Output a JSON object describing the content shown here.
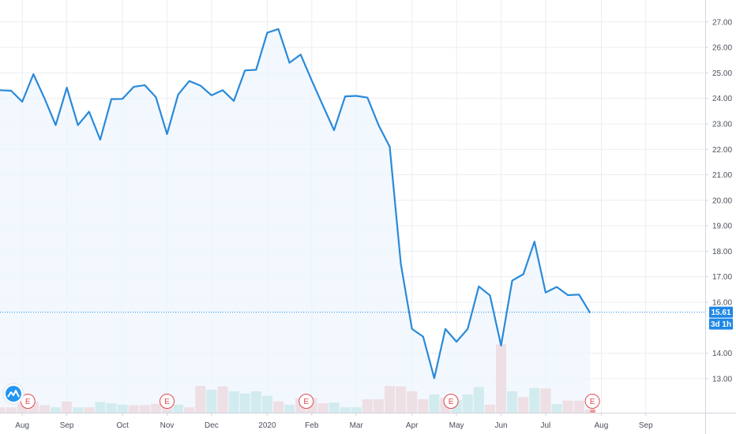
{
  "chart_data": {
    "type": "line",
    "ylim": [
      12.3,
      27.35
    ],
    "y_ticks": [
      "27.00",
      "26.00",
      "25.00",
      "24.00",
      "23.00",
      "22.00",
      "21.00",
      "20.00",
      "19.00",
      "18.00",
      "17.00",
      "16.00",
      "14.00",
      "13.00"
    ],
    "x_labels": [
      {
        "label": "Aug",
        "pos": 2.0
      },
      {
        "label": "Sep",
        "pos": 6.0
      },
      {
        "label": "Oct",
        "pos": 11.0
      },
      {
        "label": "Nov",
        "pos": 15.0
      },
      {
        "label": "Dec",
        "pos": 19.0
      },
      {
        "label": "2020",
        "pos": 24.0
      },
      {
        "label": "Feb",
        "pos": 28.0
      },
      {
        "label": "Mar",
        "pos": 32.0
      },
      {
        "label": "Apr",
        "pos": 37.0
      },
      {
        "label": "May",
        "pos": 41.0
      },
      {
        "label": "Jun",
        "pos": 45.0
      },
      {
        "label": "Jul",
        "pos": 49.0
      },
      {
        "label": "Aug",
        "pos": 54.0
      },
      {
        "label": "Sep",
        "pos": 58.0
      }
    ],
    "series": [
      {
        "values": [
          24.32,
          24.3,
          23.87,
          24.95,
          24.0,
          22.95,
          24.42,
          22.95,
          23.48,
          22.38,
          23.97,
          23.98,
          24.45,
          24.52,
          24.05,
          22.6,
          24.15,
          24.68,
          24.5,
          24.12,
          24.32,
          23.9,
          25.1,
          25.12,
          26.58,
          26.72,
          25.4,
          25.72,
          24.7,
          23.72,
          22.75,
          24.08,
          24.1,
          24.03,
          22.95,
          22.1,
          17.5,
          14.95,
          14.65,
          13.02,
          14.95,
          14.45,
          14.95,
          16.62,
          16.27,
          14.3,
          16.85,
          17.1,
          18.38,
          16.38,
          16.6,
          16.28,
          16.3,
          15.58
        ]
      }
    ],
    "last_price": "15.61",
    "countdown": "3d 1h",
    "volume": [
      {
        "v": 0.2,
        "c": "red"
      },
      {
        "v": 0.2,
        "c": "red"
      },
      {
        "v": 0.33,
        "c": "red"
      },
      {
        "v": 0.4,
        "c": "red"
      },
      {
        "v": 0.28,
        "c": "red"
      },
      {
        "v": 0.2,
        "c": "green"
      },
      {
        "v": 0.42,
        "c": "red"
      },
      {
        "v": 0.2,
        "c": "green"
      },
      {
        "v": 0.2,
        "c": "red"
      },
      {
        "v": 0.4,
        "c": "green"
      },
      {
        "v": 0.35,
        "c": "green"
      },
      {
        "v": 0.3,
        "c": "green"
      },
      {
        "v": 0.28,
        "c": "red"
      },
      {
        "v": 0.28,
        "c": "red"
      },
      {
        "v": 0.33,
        "c": "red"
      },
      {
        "v": 0.42,
        "c": "red"
      },
      {
        "v": 0.3,
        "c": "green"
      },
      {
        "v": 0.2,
        "c": "red"
      },
      {
        "v": 1.0,
        "c": "red"
      },
      {
        "v": 0.86,
        "c": "green"
      },
      {
        "v": 0.98,
        "c": "red"
      },
      {
        "v": 0.8,
        "c": "green"
      },
      {
        "v": 0.72,
        "c": "green"
      },
      {
        "v": 0.8,
        "c": "green"
      },
      {
        "v": 0.63,
        "c": "green"
      },
      {
        "v": 0.42,
        "c": "red"
      },
      {
        "v": 0.3,
        "c": "green"
      },
      {
        "v": 0.55,
        "c": "red"
      },
      {
        "v": 0.55,
        "c": "red"
      },
      {
        "v": 0.35,
        "c": "red"
      },
      {
        "v": 0.38,
        "c": "green"
      },
      {
        "v": 0.2,
        "c": "green"
      },
      {
        "v": 0.2,
        "c": "green"
      },
      {
        "v": 0.5,
        "c": "red"
      },
      {
        "v": 0.5,
        "c": "red"
      },
      {
        "v": 1.0,
        "c": "red"
      },
      {
        "v": 0.98,
        "c": "red"
      },
      {
        "v": 0.8,
        "c": "red"
      },
      {
        "v": 0.5,
        "c": "red"
      },
      {
        "v": 0.68,
        "c": "green"
      },
      {
        "v": 0.55,
        "c": "red"
      },
      {
        "v": 0.48,
        "c": "green"
      },
      {
        "v": 0.68,
        "c": "green"
      },
      {
        "v": 0.96,
        "c": "green"
      },
      {
        "v": 0.3,
        "c": "red"
      },
      {
        "v": 2.55,
        "c": "red"
      },
      {
        "v": 0.8,
        "c": "green"
      },
      {
        "v": 0.58,
        "c": "red"
      },
      {
        "v": 0.92,
        "c": "green"
      },
      {
        "v": 0.9,
        "c": "red"
      },
      {
        "v": 0.32,
        "c": "green"
      },
      {
        "v": 0.45,
        "c": "red"
      },
      {
        "v": 0.45,
        "c": "red"
      },
      {
        "v": 0.12,
        "c": "red"
      }
    ],
    "earnings_label": "E",
    "earnings": [
      2.5,
      15.0,
      27.5,
      40.5,
      53.2
    ],
    "grid": true,
    "colors": {
      "line": "#2a8ad9",
      "fill": "#eef5fd",
      "grid": "#eaedf1",
      "volume_red": "#ef9a9a",
      "volume_green": "#80cbc4",
      "earnings": "#e0474c",
      "price_badge": "#1e88e5",
      "axis_border": "#d1d4dc"
    }
  }
}
